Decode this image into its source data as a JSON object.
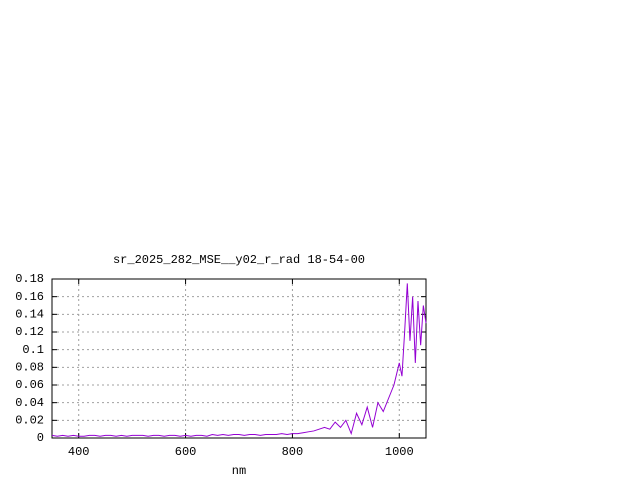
{
  "chart_data": {
    "type": "line",
    "title": "sr_2025_282_MSE__y02_r_rad 18-54-00",
    "x_label": "nm",
    "x": [
      350,
      360,
      370,
      380,
      390,
      400,
      410,
      420,
      430,
      440,
      450,
      460,
      470,
      480,
      490,
      500,
      510,
      520,
      530,
      540,
      550,
      560,
      570,
      580,
      590,
      600,
      610,
      620,
      630,
      640,
      650,
      660,
      670,
      680,
      690,
      700,
      710,
      720,
      730,
      740,
      750,
      760,
      770,
      780,
      790,
      800,
      810,
      820,
      830,
      840,
      850,
      860,
      870,
      880,
      890,
      900,
      910,
      920,
      930,
      940,
      950,
      960,
      970,
      980,
      990,
      1000,
      1005,
      1010,
      1015,
      1020,
      1025,
      1030,
      1035,
      1040,
      1045,
      1050
    ],
    "values": [
      0.003,
      0.002,
      0.003,
      0.002,
      0.003,
      0.002,
      0.002,
      0.003,
      0.003,
      0.002,
      0.003,
      0.003,
      0.002,
      0.003,
      0.002,
      0.003,
      0.003,
      0.003,
      0.002,
      0.003,
      0.003,
      0.002,
      0.003,
      0.003,
      0.002,
      0.003,
      0.002,
      0.003,
      0.003,
      0.002,
      0.004,
      0.003,
      0.004,
      0.003,
      0.004,
      0.004,
      0.003,
      0.004,
      0.004,
      0.003,
      0.004,
      0.004,
      0.004,
      0.005,
      0.004,
      0.005,
      0.005,
      0.006,
      0.007,
      0.008,
      0.01,
      0.012,
      0.01,
      0.018,
      0.012,
      0.02,
      0.005,
      0.028,
      0.015,
      0.035,
      0.012,
      0.04,
      0.03,
      0.045,
      0.06,
      0.085,
      0.07,
      0.12,
      0.175,
      0.11,
      0.16,
      0.085,
      0.155,
      0.105,
      0.15,
      0.13
    ],
    "color": "#9400d3",
    "xlim": [
      350,
      1050
    ],
    "xticks": [
      400,
      600,
      800,
      1000
    ],
    "ylim": [
      0,
      0.18
    ],
    "yticks": [
      0,
      0.02,
      0.04,
      0.06,
      0.08,
      0.1,
      0.12,
      0.14,
      0.16,
      0.18
    ],
    "grid": true
  }
}
